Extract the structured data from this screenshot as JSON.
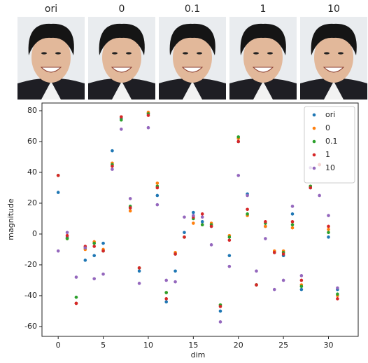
{
  "image_strip": {
    "labels": [
      "ori",
      "0",
      "0.1",
      "1",
      "10"
    ]
  },
  "chart_data": {
    "type": "scatter",
    "x_label": "dim",
    "y_label": "magnitude",
    "x": [
      0,
      1,
      2,
      3,
      4,
      5,
      6,
      7,
      8,
      9,
      10,
      11,
      12,
      13,
      14,
      15,
      16,
      17,
      18,
      19,
      20,
      21,
      22,
      23,
      24,
      25,
      26,
      27,
      28,
      29,
      30,
      31
    ],
    "series": [
      {
        "name": "ori",
        "color": "#1f77b4",
        "values": [
          27,
          -2,
          -45,
          -17,
          -14,
          -6,
          54,
          75,
          17,
          -24,
          78,
          25,
          -44,
          -24,
          1,
          14,
          8,
          5,
          -50,
          -14,
          60,
          26,
          -33,
          5,
          -12,
          -14,
          13,
          -36,
          30,
          45,
          -2,
          -36
        ]
      },
      {
        "name": "0",
        "color": "#ff7f0e",
        "values": [
          38,
          -3,
          -45,
          -10,
          -5,
          -10,
          46,
          76,
          15,
          -22,
          79,
          33,
          -38,
          -12,
          -2,
          7,
          6,
          7,
          -46,
          -1,
          62,
          12,
          -33,
          5,
          -11,
          -11,
          4,
          -33,
          31,
          45,
          3,
          -40
        ]
      },
      {
        "name": "0.1",
        "color": "#2ca02c",
        "values": [
          38,
          -3,
          -41,
          -9,
          -6,
          -11,
          45,
          74,
          18,
          -22,
          78,
          31,
          -38,
          -13,
          -2,
          10,
          6,
          6,
          -46,
          -2,
          63,
          13,
          -33,
          7,
          -12,
          -12,
          6,
          -34,
          31,
          45,
          1,
          -39
        ]
      },
      {
        "name": "1",
        "color": "#d62728",
        "values": [
          38,
          -1,
          -45,
          -8,
          -8,
          -11,
          44,
          76,
          17,
          -22,
          77,
          30,
          -42,
          -13,
          -2,
          11,
          13,
          5,
          -47,
          -4,
          60,
          16,
          -33,
          8,
          -12,
          -13,
          8,
          -30,
          30,
          45,
          5,
          -42
        ]
      },
      {
        "name": "10",
        "color": "#9467bd",
        "values": [
          -11,
          1,
          -28,
          -9,
          -29,
          -26,
          42,
          68,
          23,
          -32,
          69,
          19,
          -30,
          -31,
          11,
          12,
          11,
          -7,
          -57,
          -21,
          38,
          25,
          -24,
          -3,
          -36,
          -30,
          18,
          -27,
          43,
          25,
          12,
          -35
        ]
      }
    ],
    "xlim": [
      -1.8,
      33.3
    ],
    "ylim": [
      -66.4,
      85
    ],
    "xticks": [
      0,
      5,
      10,
      15,
      20,
      25,
      30
    ],
    "yticks": [
      -60,
      -40,
      -20,
      0,
      20,
      40,
      60,
      80
    ],
    "legend": "upper right"
  }
}
